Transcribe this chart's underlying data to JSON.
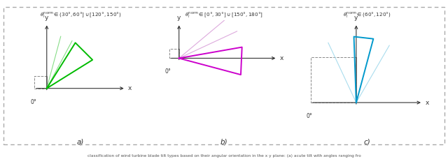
{
  "title_a": "$\\theta_i^{\\mathrm{norm}} \\in (30°, 60°] \\cup [120°, 150°)$",
  "title_b": "$\\theta_i^{\\mathrm{norm}} \\in [0°, 30°] \\cup [150°, 180°]$",
  "title_c": "$\\theta_i^{\\mathrm{norm}} \\in (60°, 120°)$",
  "label_a": "a)",
  "label_b": "b)",
  "label_c": "c)",
  "color_a_main": "#00bb00",
  "color_a_light": "#88dd88",
  "color_b_main": "#cc00cc",
  "color_b_light": "#ddaadd",
  "color_c_main": "#0099cc",
  "color_c_light": "#aaddee",
  "caption": "classification of wind turbine blade tilt types based on their angular orientation in the x y plane: (a) acute tilt with angles ranging fro"
}
